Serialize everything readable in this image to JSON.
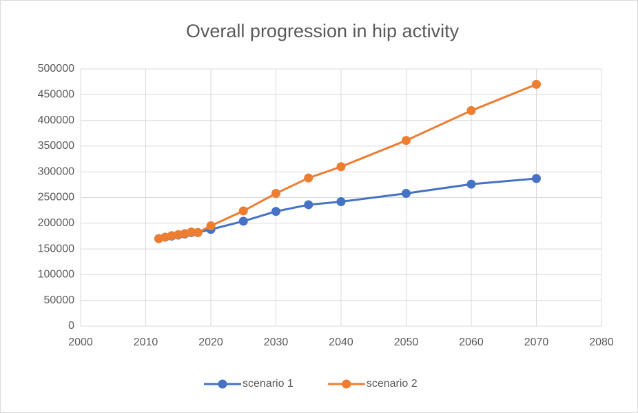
{
  "chart_data": {
    "type": "line",
    "title": "Overall progression in hip activity",
    "x": [
      2012,
      2013,
      2014,
      2015,
      2016,
      2017,
      2018,
      2020,
      2025,
      2030,
      2035,
      2040,
      2050,
      2060,
      2070
    ],
    "series": [
      {
        "name": "scenario 1",
        "color": "#4472c4",
        "values": [
          170000,
          173000,
          175000,
          177000,
          179000,
          182000,
          182000,
          188000,
          204000,
          223000,
          236000,
          242000,
          258000,
          276000,
          287000
        ]
      },
      {
        "name": "scenario 2",
        "color": "#ed7d31",
        "values": [
          170000,
          173000,
          176000,
          178000,
          180000,
          183000,
          182000,
          195000,
          224000,
          258000,
          288000,
          310000,
          361000,
          419000,
          470000
        ]
      }
    ],
    "xlim": [
      2000,
      2080
    ],
    "xticks": [
      2000,
      2010,
      2020,
      2030,
      2040,
      2050,
      2060,
      2070,
      2080
    ],
    "ylim": [
      0,
      500000
    ],
    "yticks": [
      0,
      50000,
      100000,
      150000,
      200000,
      250000,
      300000,
      350000,
      400000,
      450000,
      500000
    ],
    "grid": true,
    "legend": "bottom"
  }
}
